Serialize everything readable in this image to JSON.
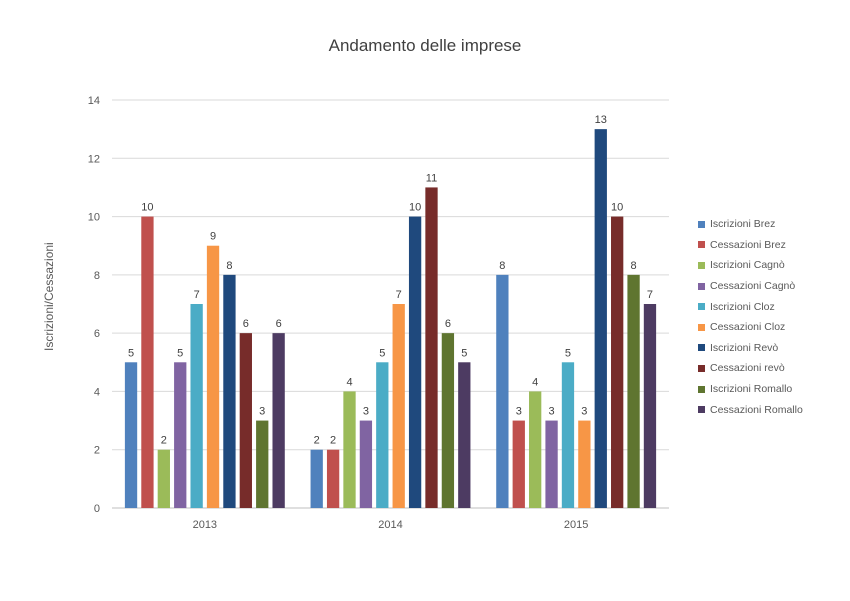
{
  "chart_data": {
    "type": "bar",
    "title": "Andamento delle imprese",
    "xlabel": "",
    "ylabel": "Iscrizioni/Cessazioni",
    "ylim": [
      0,
      14
    ],
    "yticks": [
      "0",
      "2",
      "4",
      "6",
      "8",
      "10",
      "12",
      "14"
    ],
    "grid": true,
    "legend_position": "right",
    "categories": [
      "2013",
      "2014",
      "2015"
    ],
    "series": [
      {
        "name": "Iscrizioni Brez",
        "color": "#4f81bd",
        "values": [
          5,
          2,
          8
        ]
      },
      {
        "name": "Cessazioni Brez",
        "color": "#c0504d",
        "values": [
          10,
          2,
          3
        ]
      },
      {
        "name": "Iscrizioni Cagnò",
        "color": "#9bbb59",
        "values": [
          2,
          4,
          4
        ]
      },
      {
        "name": "Cessazioni Cagnò",
        "color": "#8064a2",
        "values": [
          5,
          3,
          3
        ]
      },
      {
        "name": "Iscrizioni Cloz",
        "color": "#4bacc6",
        "values": [
          7,
          5,
          5
        ]
      },
      {
        "name": "Cessazioni Cloz",
        "color": "#f79646",
        "values": [
          9,
          7,
          3
        ]
      },
      {
        "name": "Iscrizioni Revò",
        "color": "#1f497d",
        "values": [
          8,
          10,
          13
        ]
      },
      {
        "name": "Cessazioni revò",
        "color": "#772c2a",
        "values": [
          6,
          11,
          10
        ]
      },
      {
        "name": "Iscrizioni Romallo",
        "color": "#5f7530",
        "values": [
          3,
          6,
          8
        ]
      },
      {
        "name": "Cessazioni Romallo",
        "color": "#4d3b62",
        "values": [
          6,
          5,
          7
        ]
      }
    ]
  }
}
